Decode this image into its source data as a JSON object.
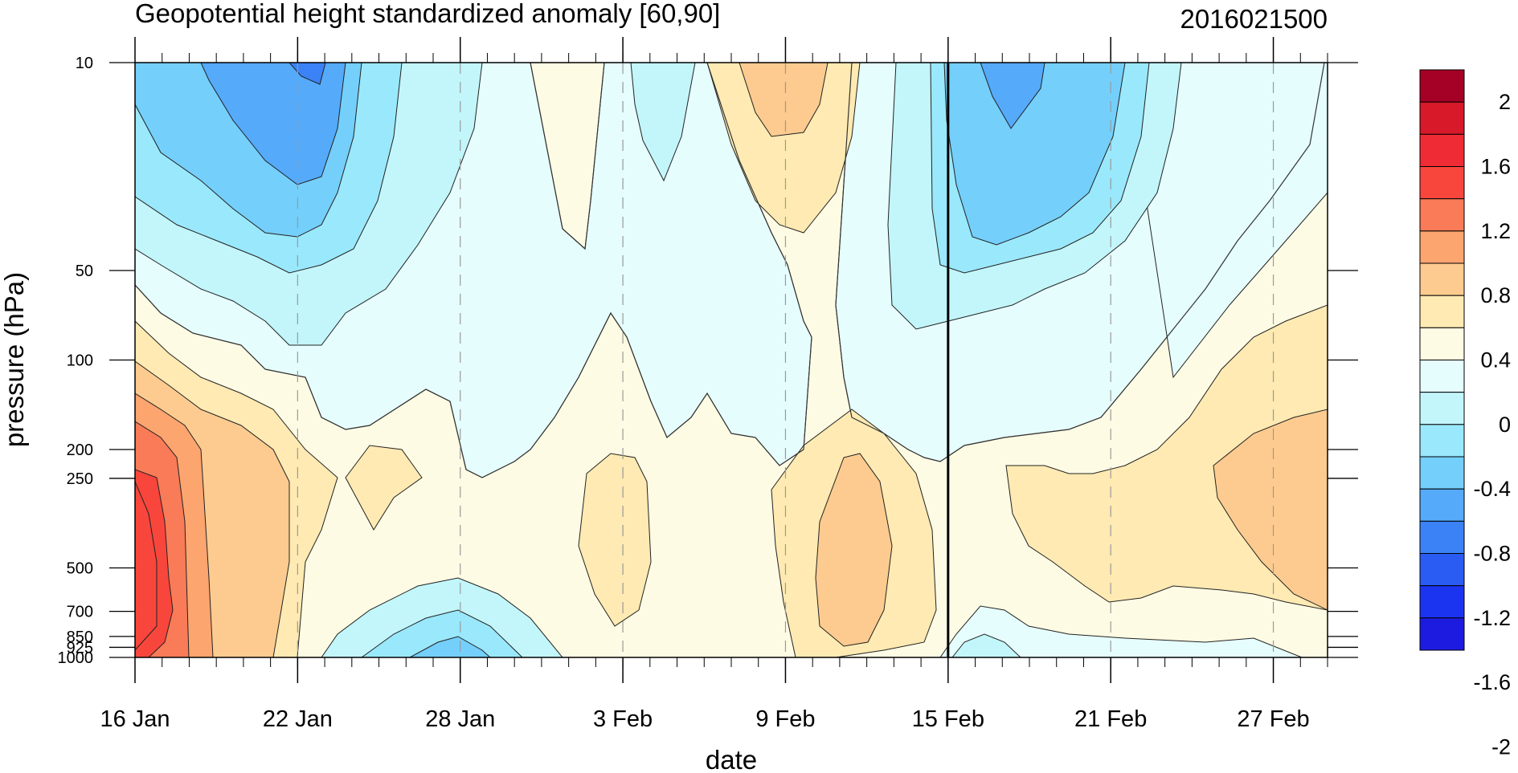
{
  "chart_data": {
    "type": "contour",
    "title": "Geopotential height standardized anomaly [60,90]",
    "right_title": "2016021500",
    "xlabel": "date",
    "ylabel": "pressure (hPa)",
    "x_ticks": [
      "16 Jan",
      "22 Jan",
      "28 Jan",
      "3 Feb",
      "9 Feb",
      "15 Feb",
      "21 Feb",
      "27 Feb"
    ],
    "x_range": [
      "16 Jan 2016",
      "29 Feb 2016"
    ],
    "y_ticks": [
      "10",
      "50",
      "100",
      "200",
      "250",
      "500",
      "700",
      "850",
      "925",
      "1000"
    ],
    "y_scale": "log",
    "y_range": [
      1000,
      10
    ],
    "marker_date": "15 Feb",
    "grid": "dashed vertical lines at date ticks",
    "colorbar": {
      "labels": [
        "2",
        "1.6",
        "1.2",
        "0.8",
        "0.4",
        "0",
        "-0.4",
        "-0.8",
        "-1.2",
        "-1.6",
        "-2"
      ],
      "colors": [
        "#a50026",
        "#d7192a",
        "#ef2b35",
        "#f8463c",
        "#f97b58",
        "#fca56f",
        "#fdcb90",
        "#feeab2",
        "#fefbe4",
        "#e6fdfd",
        "#c2f6fb",
        "#9ae8fb",
        "#74cffb",
        "#55aafa",
        "#3b82f6",
        "#2a5bf3",
        "#1b34f0",
        "#1e1be0"
      ]
    },
    "regions": [
      {
        "level": "0.4",
        "dates": "18 Jan - 29 Jan",
        "pressure": "100 - 1000"
      },
      {
        "level": "1.2 to 1.6",
        "dates": "16 Jan - 18 Jan",
        "pressure": "200 - 1000"
      },
      {
        "level": "-0.8",
        "dates": "18 Jan - 24 Jan",
        "pressure": "10 - 30"
      },
      {
        "level": "-0.4",
        "dates": "26 Jan - 31 Jan",
        "pressure": "500 - 1000"
      },
      {
        "level": "0.8",
        "dates": "8 Feb - 11 Feb",
        "pressure": "10 - 35"
      },
      {
        "level": "0.4",
        "dates": "9 Feb - 15 Feb",
        "pressure": "150 - 900"
      },
      {
        "level": "-0.8",
        "dates": "15 Feb - 23 Feb",
        "pressure": "10 - 110"
      },
      {
        "level": "0.4",
        "dates": "18 Feb - 29 Feb",
        "pressure": "80 - 700"
      }
    ]
  }
}
